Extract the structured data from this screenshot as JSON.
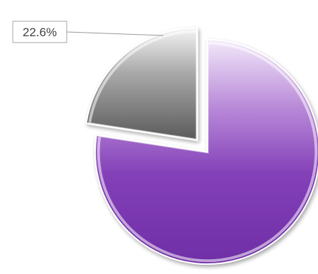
{
  "chart_data": {
    "type": "pie",
    "title": "",
    "slices": [
      {
        "label": "",
        "value": 77.4,
        "color": "#7d3bb0",
        "data_label": ""
      },
      {
        "label": "",
        "value": 22.6,
        "color": "#8a8a8a",
        "data_label": "22.6%",
        "exploded": true
      }
    ],
    "start_angle_deg": 0,
    "direction": "clockwise",
    "legend": "none",
    "data_labels": "callout"
  }
}
